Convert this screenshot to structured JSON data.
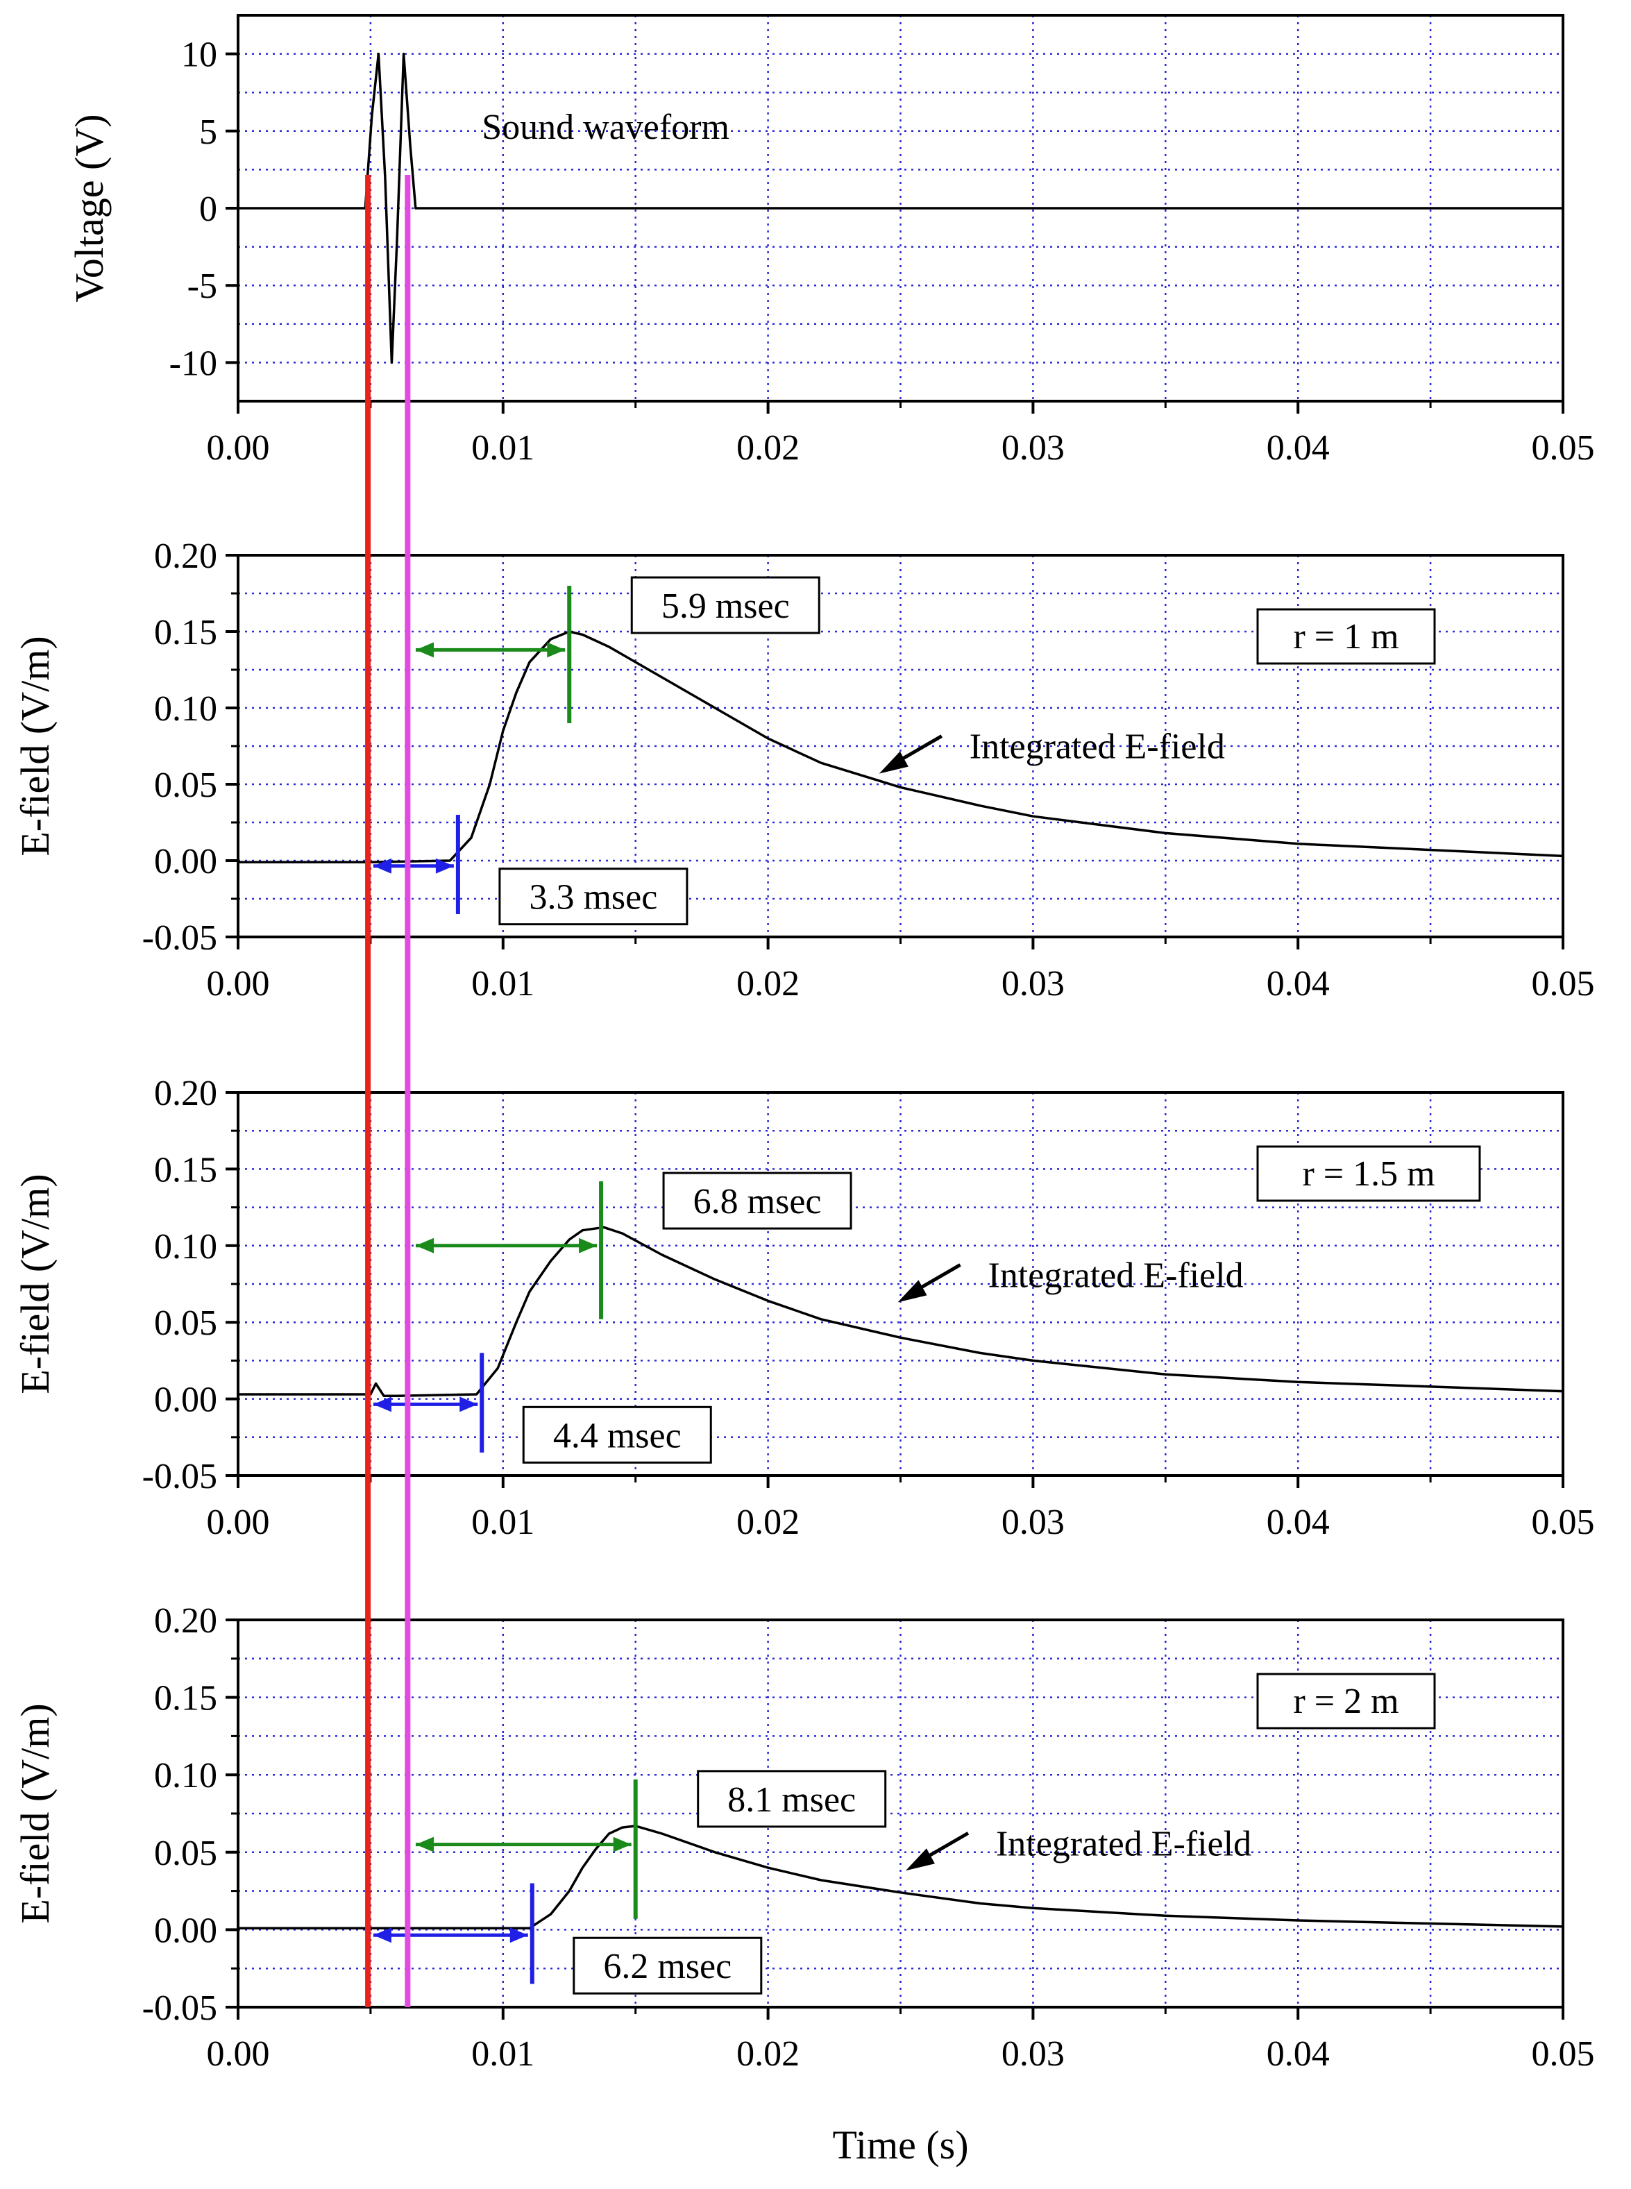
{
  "chart_data": [
    {
      "type": "line",
      "panel": "top",
      "xlabel": "",
      "ylabel": "Voltage (V)",
      "xlim": [
        0,
        0.05
      ],
      "ylim": [
        -12.5,
        12.5
      ],
      "xticks": [
        "0.00",
        "0.01",
        "0.02",
        "0.03",
        "0.04",
        "0.05"
      ],
      "yticks": [
        "-10",
        "-5",
        "0",
        "5",
        "10"
      ],
      "grid": true,
      "series": [
        {
          "name": "Sound waveform",
          "x": [
            0,
            0.0048,
            0.00505,
            0.0053,
            0.00555,
            0.0058,
            0.006,
            0.00625,
            0.0065,
            0.0067,
            0.05
          ],
          "y": [
            0,
            0,
            6,
            10,
            2,
            -10,
            -2,
            10,
            4,
            0,
            0
          ]
        }
      ],
      "annotations": [
        {
          "text": "Sound waveform",
          "x": 0.0092,
          "y": 4.5
        }
      ]
    },
    {
      "type": "line",
      "panel": "r1",
      "xlabel": "",
      "ylabel": "E-field (V/m)",
      "xlim": [
        0,
        0.05
      ],
      "ylim": [
        -0.05,
        0.2
      ],
      "xticks": [
        "0.00",
        "0.01",
        "0.02",
        "0.03",
        "0.04",
        "0.05"
      ],
      "yticks": [
        "-0.05",
        "0.00",
        "0.05",
        "0.10",
        "0.15",
        "0.20"
      ],
      "grid": true,
      "series": [
        {
          "name": "Integrated E-field",
          "x": [
            0,
            0.005,
            0.008,
            0.0088,
            0.0095,
            0.01,
            0.0105,
            0.011,
            0.0118,
            0.0125,
            0.013,
            0.014,
            0.016,
            0.018,
            0.02,
            0.022,
            0.025,
            0.028,
            0.03,
            0.035,
            0.04,
            0.045,
            0.05
          ],
          "y": [
            -0.001,
            -0.001,
            0.0,
            0.015,
            0.05,
            0.085,
            0.11,
            0.13,
            0.145,
            0.15,
            0.148,
            0.14,
            0.12,
            0.1,
            0.08,
            0.064,
            0.048,
            0.036,
            0.029,
            0.018,
            0.011,
            0.007,
            0.003
          ]
        }
      ],
      "label_box": "r = 1 m",
      "markers": [
        {
          "kind": "vline",
          "color": "#1f1fe6",
          "x": 0.0083,
          "label": "3.3 msec",
          "arrow_from": 0.005
        },
        {
          "kind": "vline",
          "color": "#1a8a1a",
          "x": 0.0125,
          "label": "5.9 msec",
          "arrow_from": 0.0066
        }
      ],
      "annotations": [
        {
          "text": "Integrated E-field",
          "x": 0.0276,
          "y": 0.067
        }
      ]
    },
    {
      "type": "line",
      "panel": "r1.5",
      "xlabel": "",
      "ylabel": "E-field (V/m)",
      "xlim": [
        0,
        0.05
      ],
      "ylim": [
        -0.05,
        0.2
      ],
      "xticks": [
        "0.00",
        "0.01",
        "0.02",
        "0.03",
        "0.04",
        "0.05"
      ],
      "yticks": [
        "-0.05",
        "0.00",
        "0.05",
        "0.10",
        "0.15",
        "0.20"
      ],
      "grid": true,
      "series": [
        {
          "name": "Integrated E-field",
          "x": [
            0,
            0.005,
            0.0052,
            0.0055,
            0.006,
            0.009,
            0.0098,
            0.0105,
            0.011,
            0.0118,
            0.0125,
            0.013,
            0.0138,
            0.0145,
            0.016,
            0.018,
            0.02,
            0.022,
            0.025,
            0.028,
            0.03,
            0.035,
            0.04,
            0.045,
            0.05
          ],
          "y": [
            0.003,
            0.003,
            0.01,
            0.002,
            0.002,
            0.003,
            0.02,
            0.05,
            0.07,
            0.09,
            0.104,
            0.11,
            0.112,
            0.108,
            0.094,
            0.078,
            0.064,
            0.052,
            0.04,
            0.03,
            0.025,
            0.016,
            0.011,
            0.008,
            0.005
          ]
        }
      ],
      "label_box": "r = 1.5 m",
      "markers": [
        {
          "kind": "vline",
          "color": "#1f1fe6",
          "x": 0.0092,
          "label": "4.4 msec",
          "arrow_from": 0.005
        },
        {
          "kind": "vline",
          "color": "#1a8a1a",
          "x": 0.0137,
          "label": "6.8 msec",
          "arrow_from": 0.0066
        }
      ],
      "annotations": [
        {
          "text": "Integrated E-field",
          "x": 0.0283,
          "y": 0.073
        }
      ]
    },
    {
      "type": "line",
      "panel": "r2",
      "xlabel": "Time (s)",
      "ylabel": "E-field (V/m)",
      "xlim": [
        0,
        0.05
      ],
      "ylim": [
        -0.05,
        0.2
      ],
      "xticks": [
        "0.00",
        "0.01",
        "0.02",
        "0.03",
        "0.04",
        "0.05"
      ],
      "yticks": [
        "-0.05",
        "0.00",
        "0.05",
        "0.10",
        "0.15",
        "0.20"
      ],
      "grid": true,
      "series": [
        {
          "name": "Integrated E-field",
          "x": [
            0,
            0.011,
            0.0118,
            0.0125,
            0.013,
            0.0135,
            0.014,
            0.0145,
            0.015,
            0.016,
            0.018,
            0.02,
            0.022,
            0.025,
            0.028,
            0.03,
            0.035,
            0.04,
            0.045,
            0.05
          ],
          "y": [
            0.001,
            0.001,
            0.01,
            0.025,
            0.04,
            0.052,
            0.062,
            0.066,
            0.067,
            0.062,
            0.05,
            0.04,
            0.032,
            0.024,
            0.017,
            0.014,
            0.009,
            0.006,
            0.004,
            0.002
          ]
        }
      ],
      "label_box": "r = 2 m",
      "markers": [
        {
          "kind": "vline",
          "color": "#1f1fe6",
          "x": 0.0111,
          "label": "6.2 msec",
          "arrow_from": 0.005
        },
        {
          "kind": "vline",
          "color": "#1a8a1a",
          "x": 0.015,
          "label": "8.1 msec",
          "arrow_from": 0.0066
        }
      ],
      "annotations": [
        {
          "text": "Integrated E-field",
          "x": 0.0286,
          "y": 0.048
        }
      ]
    }
  ],
  "reference_lines": [
    {
      "color": "#e8231a",
      "x": 0.0049
    },
    {
      "color": "#e24ae2",
      "x": 0.0064
    }
  ]
}
